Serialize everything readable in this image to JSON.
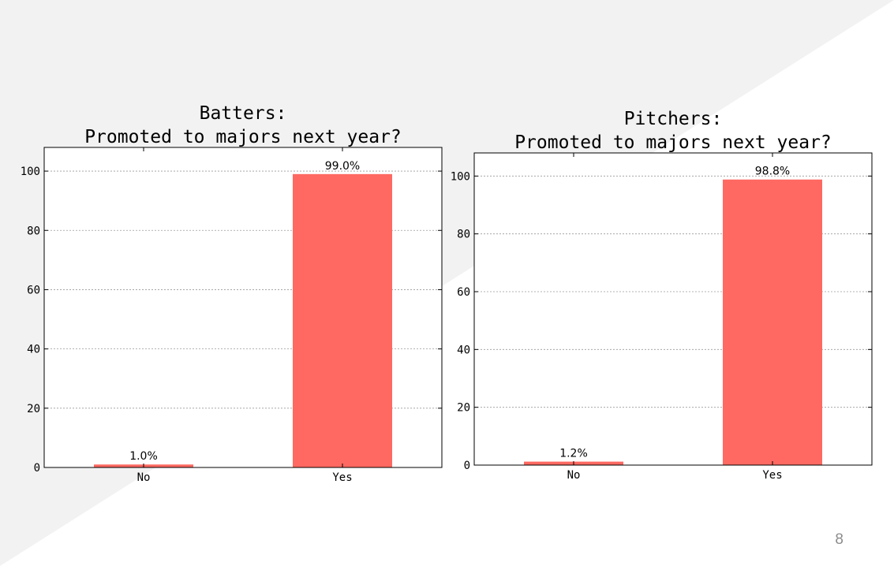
{
  "slide": {
    "page_number": "8",
    "background": "#f2f2f2",
    "accent": "#ffffff"
  },
  "chart_data": [
    {
      "type": "bar",
      "title": "Batters:\nPromoted to majors next year?",
      "title_lines": [
        "Batters:",
        "Promoted to majors next year?"
      ],
      "categories": [
        "No",
        "Yes"
      ],
      "values": [
        1.0,
        99.0
      ],
      "value_labels": [
        "1.0%",
        "99.0%"
      ],
      "yticks": [
        "0",
        "20",
        "40",
        "60",
        "80",
        "100"
      ],
      "ylim": [
        0,
        108
      ],
      "xlabel": "",
      "ylabel": "",
      "grid": "horizontal dotted",
      "bar_color": "#ff6961"
    },
    {
      "type": "bar",
      "title": "Pitchers:\nPromoted to majors next year?",
      "title_lines": [
        "Pitchers:",
        "Promoted to majors next year?"
      ],
      "categories": [
        "No",
        "Yes"
      ],
      "values": [
        1.2,
        98.8
      ],
      "value_labels": [
        "1.2%",
        "98.8%"
      ],
      "yticks": [
        "0",
        "20",
        "40",
        "60",
        "80",
        "100"
      ],
      "ylim": [
        0,
        108
      ],
      "xlabel": "",
      "ylabel": "",
      "grid": "horizontal dotted",
      "bar_color": "#ff6961"
    }
  ]
}
